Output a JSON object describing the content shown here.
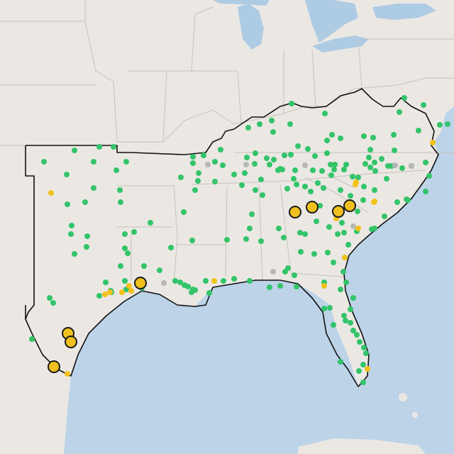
{
  "map": {
    "colors": {
      "water": "#bcd3e8",
      "land": "#ebe8e3",
      "border": "#111111",
      "state_lines": "#c6c2bc",
      "green": "#33c46a",
      "yellow": "#f2c21a",
      "gray": "#b7b7b7"
    },
    "layers": [
      {
        "name": "green-markers",
        "style": "small green dot"
      },
      {
        "name": "yellow-markers",
        "style": "small yellow dot"
      },
      {
        "name": "gray-markers",
        "style": "small gray dot"
      },
      {
        "name": "large-markers",
        "style": "large yellow circle with black outline"
      }
    ]
  }
}
